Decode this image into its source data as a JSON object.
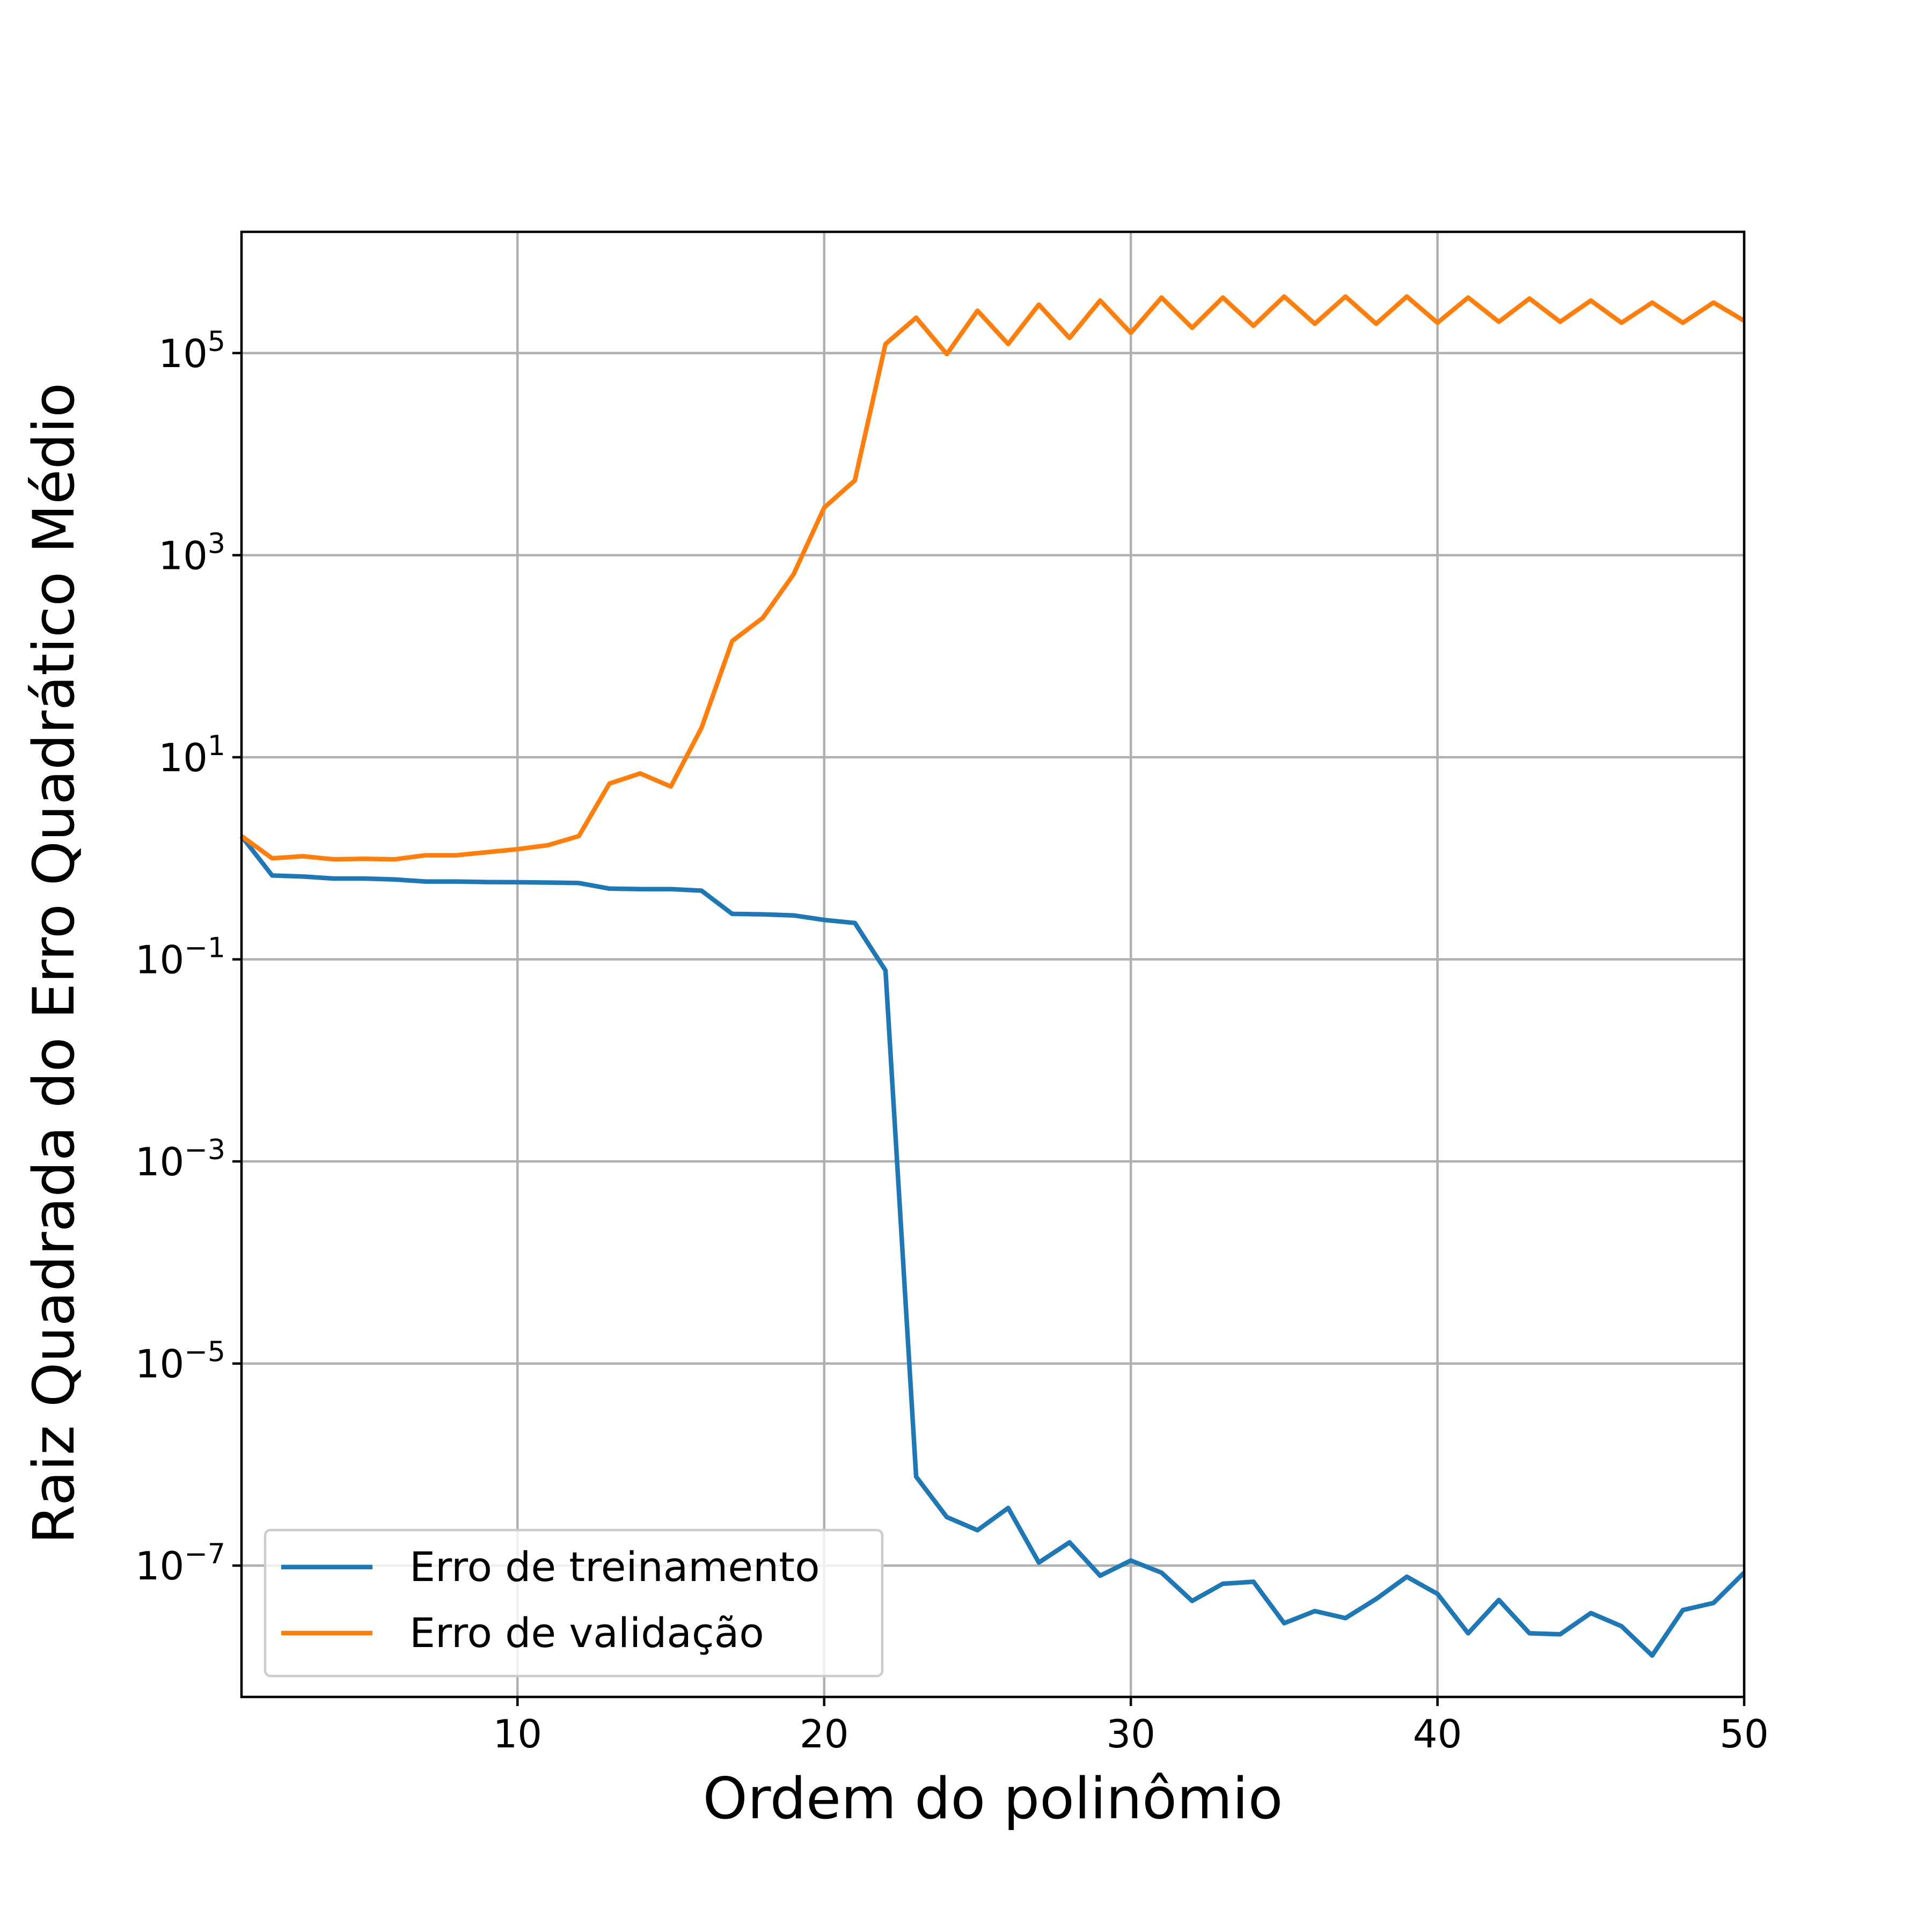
{
  "chart_data": {
    "type": "line",
    "xlabel": "Ordem do polinômio",
    "ylabel": "Raiz Quadrada do Erro Quadrático Médio",
    "xlim": [
      1,
      50
    ],
    "ylim_log10": [
      -8.3,
      6.2
    ],
    "yscale": "log",
    "grid": true,
    "legend_position": "lower-left",
    "xticks": [
      10,
      20,
      30,
      40,
      50
    ],
    "xtick_labels": [
      "10",
      "20",
      "30",
      "40",
      "50"
    ],
    "yticks_exp": [
      5,
      3,
      1,
      -1,
      -3,
      -5,
      -7
    ],
    "ytick_labels": [
      {
        "base": "10",
        "exp": "5"
      },
      {
        "base": "10",
        "exp": "3"
      },
      {
        "base": "10",
        "exp": "1"
      },
      {
        "base": "10",
        "exp": "−1"
      },
      {
        "base": "10",
        "exp": "−3"
      },
      {
        "base": "10",
        "exp": "−5"
      },
      {
        "base": "10",
        "exp": "−7"
      }
    ],
    "x": [
      1,
      2,
      3,
      4,
      5,
      6,
      7,
      8,
      9,
      10,
      11,
      12,
      13,
      14,
      15,
      16,
      17,
      18,
      19,
      20,
      21,
      22,
      23,
      24,
      25,
      26,
      27,
      28,
      29,
      30,
      31,
      32,
      33,
      34,
      35,
      36,
      37,
      38,
      39,
      40,
      41,
      42,
      43,
      44,
      45,
      46,
      47,
      48,
      49,
      50
    ],
    "series": [
      {
        "name": "Erro de treinamento",
        "color": "#1f77b4",
        "log10_values": [
          0.22,
          -0.17,
          -0.18,
          -0.2,
          -0.2,
          -0.21,
          -0.23,
          -0.23,
          -0.235,
          -0.237,
          -0.24,
          -0.245,
          -0.3,
          -0.305,
          -0.305,
          -0.32,
          -0.55,
          -0.555,
          -0.565,
          -0.61,
          -0.64,
          -1.11,
          -6.12,
          -6.52,
          -6.65,
          -6.43,
          -6.97,
          -6.77,
          -7.1,
          -6.95,
          -7.07,
          -7.35,
          -7.18,
          -7.16,
          -7.57,
          -7.45,
          -7.52,
          -7.33,
          -7.11,
          -7.28,
          -7.67,
          -7.34,
          -7.67,
          -7.68,
          -7.47,
          -7.6,
          -7.89,
          -7.44,
          -7.37,
          -7.07
        ]
      },
      {
        "name": "Erro de validação",
        "color": "#ff7f0e",
        "log10_values": [
          0.22,
          0.0,
          0.02,
          -0.01,
          -0.005,
          -0.01,
          0.03,
          0.03,
          0.06,
          0.09,
          0.13,
          0.22,
          0.74,
          0.84,
          0.71,
          1.29,
          2.15,
          2.38,
          2.81,
          3.47,
          3.74,
          5.09,
          5.35,
          4.99,
          5.42,
          5.09,
          5.48,
          5.15,
          5.52,
          5.2,
          5.55,
          5.25,
          5.55,
          5.27,
          5.56,
          5.29,
          5.56,
          5.29,
          5.56,
          5.3,
          5.55,
          5.31,
          5.54,
          5.31,
          5.52,
          5.3,
          5.5,
          5.3,
          5.5,
          5.32
        ]
      }
    ]
  }
}
